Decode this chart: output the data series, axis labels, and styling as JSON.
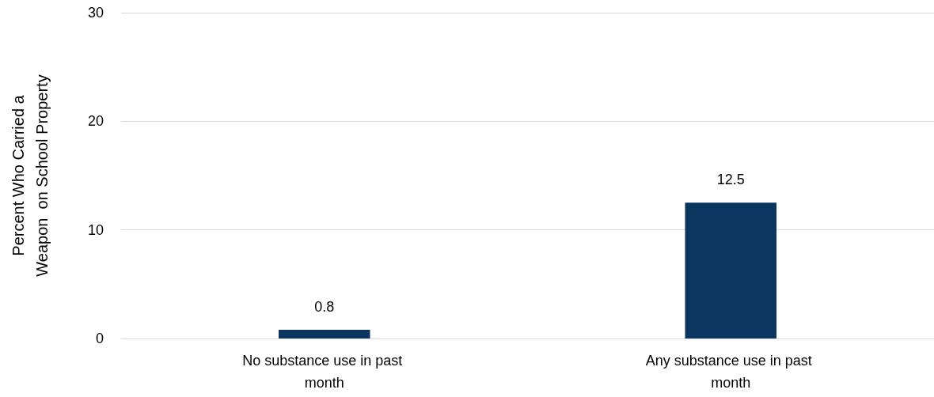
{
  "chart_data": {
    "type": "bar",
    "ylabel": "Percent Who Carried a\nWeapon  on School Property",
    "categories": [
      "No substance use in past month",
      "Any substance use in past month"
    ],
    "values": [
      0.8,
      12.5
    ],
    "color": "#0b3660",
    "ylim": [
      0,
      30
    ],
    "yticks": [
      0,
      10,
      20,
      30
    ],
    "grid": "y",
    "data_labels": true
  }
}
